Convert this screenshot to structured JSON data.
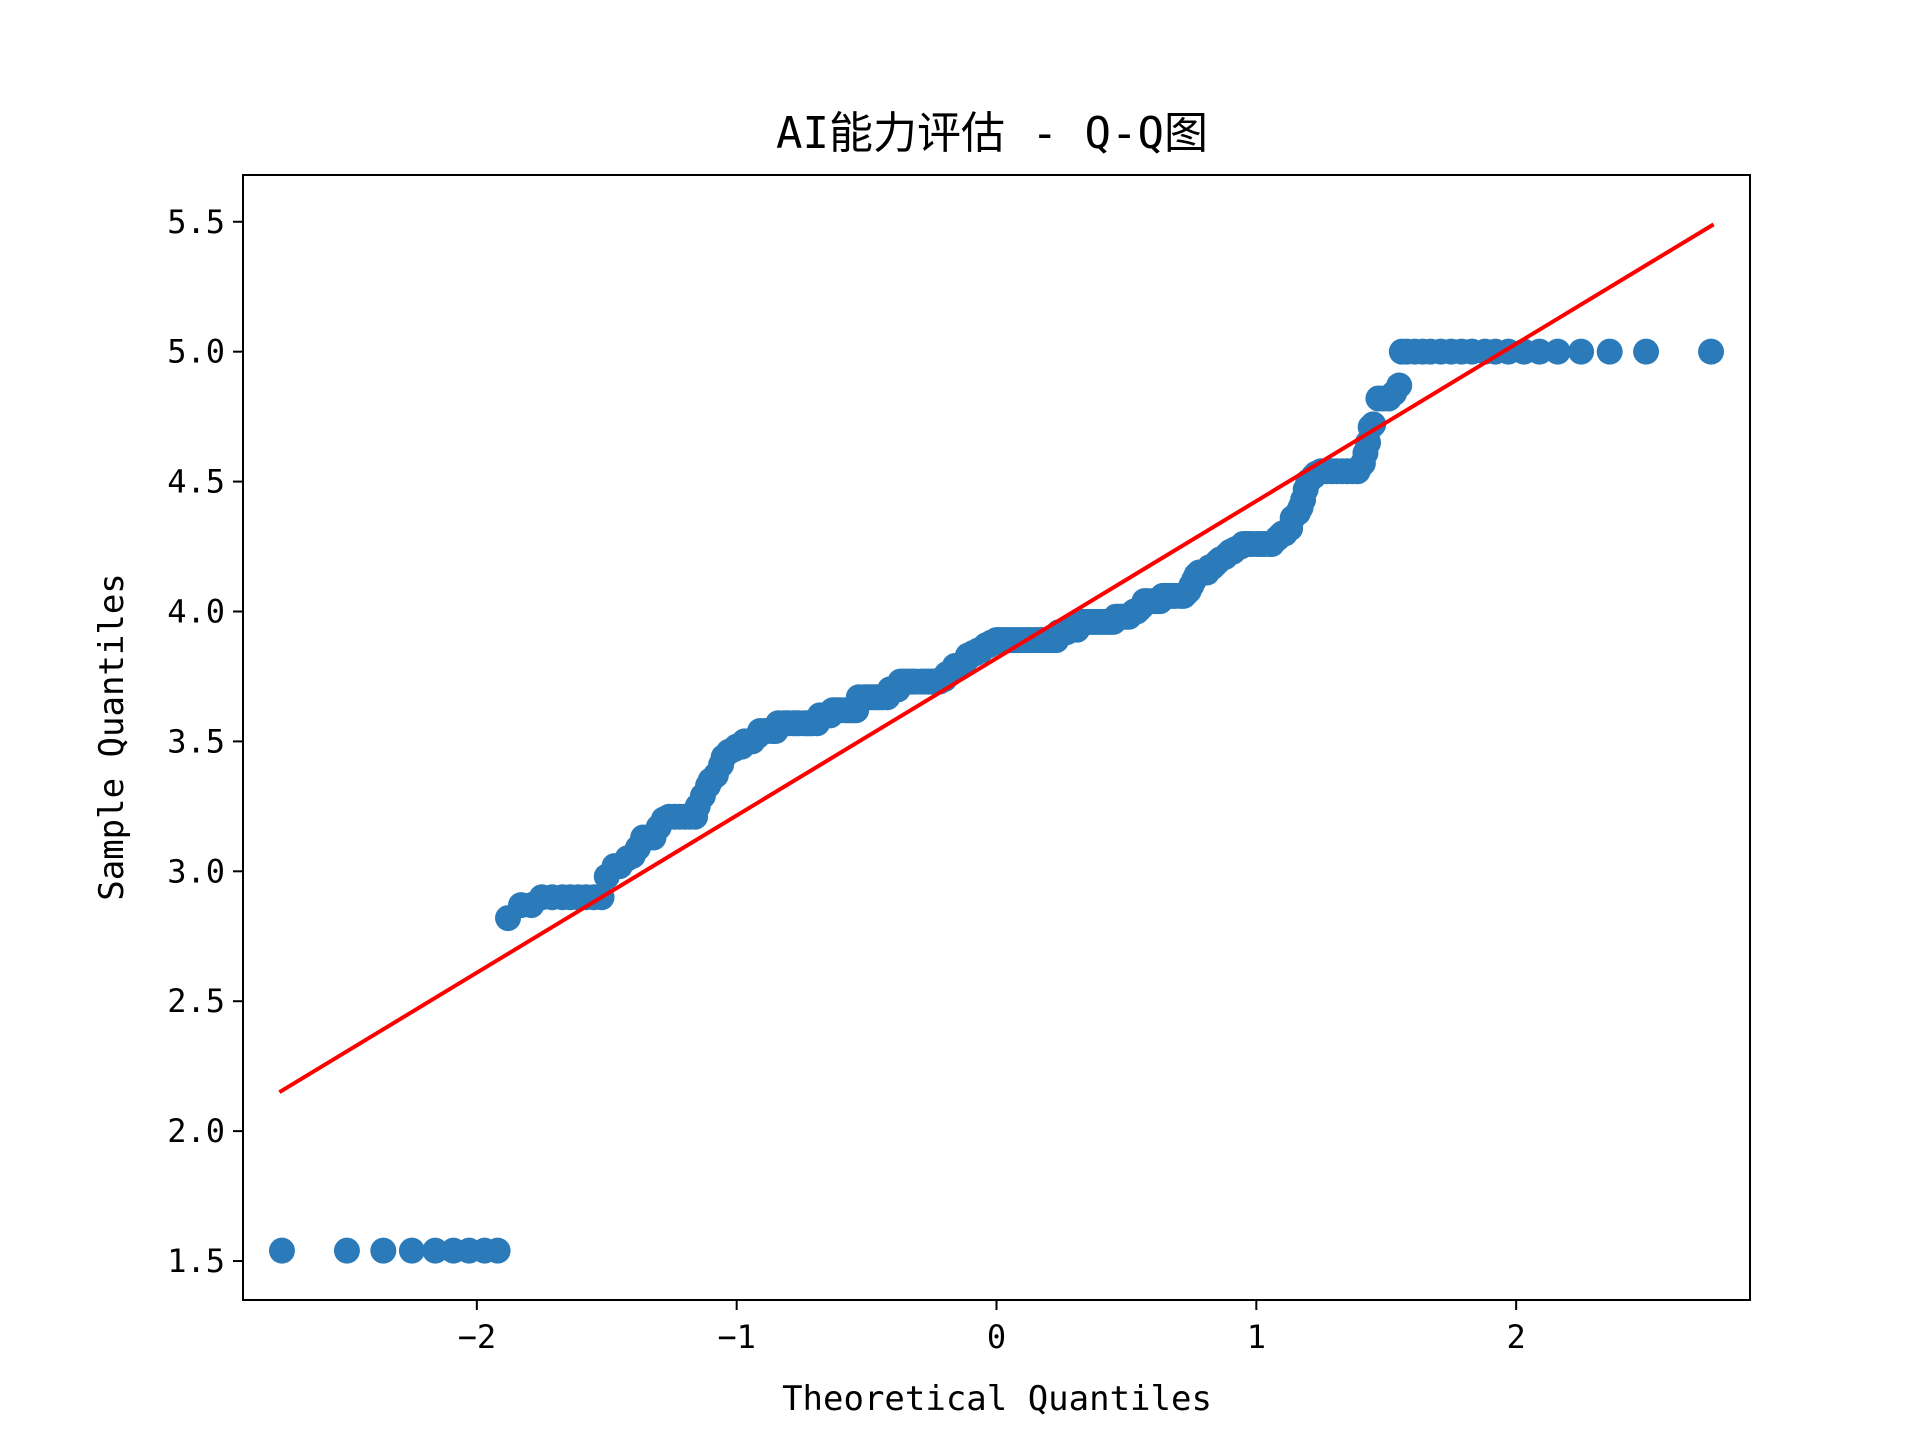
{
  "chart_data": {
    "type": "scatter",
    "title": "AI能力评估 - Q-Q图",
    "xlabel": "Theoretical Quantiles",
    "ylabel": "Sample Quantiles",
    "xlim": [
      -2.9,
      2.9
    ],
    "ylim": [
      1.35,
      5.68
    ],
    "xticks": [
      -2,
      -1,
      0,
      1,
      2
    ],
    "xtick_labels": [
      "−2",
      "−1",
      "0",
      "1",
      "2"
    ],
    "yticks": [
      1.5,
      2.0,
      2.5,
      3.0,
      3.5,
      4.0,
      4.5,
      5.0,
      5.5
    ],
    "ytick_labels": [
      "1.5",
      "2.0",
      "2.5",
      "3.0",
      "3.5",
      "4.0",
      "4.5",
      "5.0",
      "5.5"
    ],
    "grid": false,
    "legend": "none",
    "point_color": "#2b7bba",
    "line_color": "#ff0000",
    "series": [
      {
        "kind": "scatter",
        "points": [
          [
            -2.75,
            1.54
          ],
          [
            -2.5,
            1.54
          ],
          [
            -2.36,
            1.54
          ],
          [
            -2.25,
            1.54
          ],
          [
            -2.16,
            1.54
          ],
          [
            -2.09,
            1.54
          ],
          [
            -2.03,
            1.54
          ],
          [
            -1.97,
            1.54
          ],
          [
            -1.92,
            1.54
          ],
          [
            -1.88,
            2.82
          ],
          [
            -1.83,
            2.87
          ],
          [
            -1.79,
            2.87
          ],
          [
            -1.75,
            2.9
          ],
          [
            -1.71,
            2.9
          ],
          [
            -1.67,
            2.9
          ],
          [
            -1.64,
            2.9
          ],
          [
            -1.61,
            2.9
          ],
          [
            -1.58,
            2.9
          ],
          [
            -1.55,
            2.9
          ],
          [
            -1.52,
            2.9
          ],
          [
            -1.5,
            2.98
          ],
          [
            -1.47,
            3.02
          ],
          [
            -1.45,
            3.02
          ],
          [
            -1.42,
            3.05
          ],
          [
            -1.4,
            3.06
          ],
          [
            -1.38,
            3.09
          ],
          [
            -1.36,
            3.13
          ],
          [
            -1.34,
            3.13
          ],
          [
            -1.32,
            3.13
          ],
          [
            -1.3,
            3.17
          ],
          [
            -1.28,
            3.2
          ],
          [
            -1.26,
            3.21
          ],
          [
            -1.24,
            3.21
          ],
          [
            -1.22,
            3.21
          ],
          [
            -1.2,
            3.21
          ],
          [
            -1.18,
            3.21
          ],
          [
            -1.16,
            3.21
          ],
          [
            -1.15,
            3.25
          ],
          [
            -1.13,
            3.29
          ],
          [
            -1.11,
            3.33
          ],
          [
            -1.1,
            3.35
          ],
          [
            -1.08,
            3.37
          ],
          [
            -1.06,
            3.41
          ],
          [
            -1.05,
            3.44
          ],
          [
            -1.03,
            3.46
          ],
          [
            -1.01,
            3.47
          ],
          [
            -1.0,
            3.48
          ],
          [
            -0.98,
            3.48
          ],
          [
            -0.97,
            3.5
          ],
          [
            -0.95,
            3.5
          ],
          [
            -0.94,
            3.5
          ],
          [
            -0.92,
            3.52
          ],
          [
            -0.91,
            3.54
          ],
          [
            -0.89,
            3.54
          ],
          [
            -0.88,
            3.54
          ],
          [
            -0.86,
            3.54
          ],
          [
            -0.85,
            3.54
          ],
          [
            -0.84,
            3.57
          ],
          [
            -0.82,
            3.57
          ],
          [
            -0.81,
            3.57
          ],
          [
            -0.8,
            3.57
          ],
          [
            -0.78,
            3.57
          ],
          [
            -0.77,
            3.57
          ],
          [
            -0.76,
            3.57
          ],
          [
            -0.74,
            3.57
          ],
          [
            -0.73,
            3.57
          ],
          [
            -0.72,
            3.57
          ],
          [
            -0.71,
            3.57
          ],
          [
            -0.69,
            3.57
          ],
          [
            -0.68,
            3.6
          ],
          [
            -0.67,
            3.6
          ],
          [
            -0.66,
            3.6
          ],
          [
            -0.64,
            3.6
          ],
          [
            -0.63,
            3.62
          ],
          [
            -0.62,
            3.62
          ],
          [
            -0.61,
            3.62
          ],
          [
            -0.6,
            3.62
          ],
          [
            -0.58,
            3.62
          ],
          [
            -0.57,
            3.62
          ],
          [
            -0.56,
            3.62
          ],
          [
            -0.55,
            3.62
          ],
          [
            -0.54,
            3.62
          ],
          [
            -0.53,
            3.67
          ],
          [
            -0.51,
            3.67
          ],
          [
            -0.5,
            3.67
          ],
          [
            -0.49,
            3.67
          ],
          [
            -0.48,
            3.67
          ],
          [
            -0.47,
            3.67
          ],
          [
            -0.46,
            3.67
          ],
          [
            -0.45,
            3.67
          ],
          [
            -0.44,
            3.67
          ],
          [
            -0.42,
            3.67
          ],
          [
            -0.41,
            3.7
          ],
          [
            -0.4,
            3.7
          ],
          [
            -0.39,
            3.7
          ],
          [
            -0.38,
            3.7
          ],
          [
            -0.37,
            3.73
          ],
          [
            -0.36,
            3.73
          ],
          [
            -0.35,
            3.73
          ],
          [
            -0.34,
            3.73
          ],
          [
            -0.33,
            3.73
          ],
          [
            -0.32,
            3.73
          ],
          [
            -0.31,
            3.73
          ],
          [
            -0.29,
            3.73
          ],
          [
            -0.28,
            3.73
          ],
          [
            -0.27,
            3.73
          ],
          [
            -0.26,
            3.73
          ],
          [
            -0.25,
            3.73
          ],
          [
            -0.24,
            3.73
          ],
          [
            -0.23,
            3.73
          ],
          [
            -0.22,
            3.73
          ],
          [
            -0.21,
            3.74
          ],
          [
            -0.2,
            3.74
          ],
          [
            -0.19,
            3.76
          ],
          [
            -0.18,
            3.76
          ],
          [
            -0.17,
            3.77
          ],
          [
            -0.16,
            3.79
          ],
          [
            -0.15,
            3.79
          ],
          [
            -0.14,
            3.79
          ],
          [
            -0.13,
            3.8
          ],
          [
            -0.12,
            3.81
          ],
          [
            -0.11,
            3.83
          ],
          [
            -0.1,
            3.83
          ],
          [
            -0.09,
            3.84
          ],
          [
            -0.08,
            3.84
          ],
          [
            -0.07,
            3.85
          ],
          [
            -0.06,
            3.85
          ],
          [
            -0.05,
            3.86
          ],
          [
            -0.04,
            3.87
          ],
          [
            -0.03,
            3.87
          ],
          [
            -0.02,
            3.88
          ],
          [
            -0.01,
            3.88
          ],
          [
            0.0,
            3.89
          ],
          [
            0.01,
            3.89
          ],
          [
            0.02,
            3.89
          ],
          [
            0.03,
            3.89
          ],
          [
            0.04,
            3.89
          ],
          [
            0.05,
            3.89
          ],
          [
            0.06,
            3.89
          ],
          [
            0.07,
            3.89
          ],
          [
            0.08,
            3.89
          ],
          [
            0.09,
            3.89
          ],
          [
            0.1,
            3.89
          ],
          [
            0.11,
            3.89
          ],
          [
            0.12,
            3.89
          ],
          [
            0.13,
            3.89
          ],
          [
            0.14,
            3.89
          ],
          [
            0.15,
            3.89
          ],
          [
            0.16,
            3.89
          ],
          [
            0.17,
            3.89
          ],
          [
            0.18,
            3.89
          ],
          [
            0.19,
            3.89
          ],
          [
            0.2,
            3.89
          ],
          [
            0.21,
            3.89
          ],
          [
            0.22,
            3.89
          ],
          [
            0.23,
            3.89
          ],
          [
            0.24,
            3.92
          ],
          [
            0.25,
            3.92
          ],
          [
            0.26,
            3.92
          ],
          [
            0.27,
            3.92
          ],
          [
            0.28,
            3.93
          ],
          [
            0.29,
            3.93
          ],
          [
            0.3,
            3.93
          ],
          [
            0.31,
            3.93
          ],
          [
            0.32,
            3.96
          ],
          [
            0.33,
            3.96
          ],
          [
            0.34,
            3.96
          ],
          [
            0.35,
            3.96
          ],
          [
            0.36,
            3.96
          ],
          [
            0.37,
            3.96
          ],
          [
            0.38,
            3.96
          ],
          [
            0.39,
            3.96
          ],
          [
            0.4,
            3.96
          ],
          [
            0.41,
            3.96
          ],
          [
            0.42,
            3.96
          ],
          [
            0.43,
            3.96
          ],
          [
            0.44,
            3.96
          ],
          [
            0.45,
            3.96
          ],
          [
            0.46,
            3.98
          ],
          [
            0.47,
            3.98
          ],
          [
            0.48,
            3.98
          ],
          [
            0.49,
            3.98
          ],
          [
            0.5,
            3.98
          ],
          [
            0.51,
            3.98
          ],
          [
            0.52,
            3.99
          ],
          [
            0.53,
            4.0
          ],
          [
            0.54,
            4.0
          ],
          [
            0.55,
            4.01
          ],
          [
            0.56,
            4.02
          ],
          [
            0.57,
            4.04
          ],
          [
            0.58,
            4.04
          ],
          [
            0.6,
            4.04
          ],
          [
            0.61,
            4.04
          ],
          [
            0.62,
            4.04
          ],
          [
            0.63,
            4.04
          ],
          [
            0.64,
            4.06
          ],
          [
            0.65,
            4.06
          ],
          [
            0.66,
            4.06
          ],
          [
            0.67,
            4.06
          ],
          [
            0.68,
            4.06
          ],
          [
            0.69,
            4.06
          ],
          [
            0.71,
            4.06
          ],
          [
            0.72,
            4.06
          ],
          [
            0.73,
            4.07
          ],
          [
            0.74,
            4.08
          ],
          [
            0.75,
            4.1
          ],
          [
            0.76,
            4.12
          ],
          [
            0.77,
            4.14
          ],
          [
            0.78,
            4.15
          ],
          [
            0.8,
            4.15
          ],
          [
            0.81,
            4.15
          ],
          [
            0.82,
            4.17
          ],
          [
            0.83,
            4.17
          ],
          [
            0.84,
            4.18
          ],
          [
            0.85,
            4.19
          ],
          [
            0.86,
            4.2
          ],
          [
            0.88,
            4.21
          ],
          [
            0.89,
            4.22
          ],
          [
            0.9,
            4.23
          ],
          [
            0.91,
            4.23
          ],
          [
            0.92,
            4.24
          ],
          [
            0.94,
            4.25
          ],
          [
            0.95,
            4.26
          ],
          [
            0.96,
            4.26
          ],
          [
            0.97,
            4.26
          ],
          [
            0.98,
            4.26
          ],
          [
            1.0,
            4.26
          ],
          [
            1.01,
            4.26
          ],
          [
            1.02,
            4.26
          ],
          [
            1.03,
            4.26
          ],
          [
            1.05,
            4.26
          ],
          [
            1.06,
            4.26
          ],
          [
            1.08,
            4.28
          ],
          [
            1.09,
            4.29
          ],
          [
            1.1,
            4.3
          ],
          [
            1.11,
            4.3
          ],
          [
            1.13,
            4.32
          ],
          [
            1.14,
            4.36
          ],
          [
            1.16,
            4.38
          ],
          [
            1.17,
            4.4
          ],
          [
            1.18,
            4.43
          ],
          [
            1.19,
            4.47
          ],
          [
            1.2,
            4.5
          ],
          [
            1.22,
            4.52
          ],
          [
            1.23,
            4.53
          ],
          [
            1.25,
            4.54
          ],
          [
            1.27,
            4.54
          ],
          [
            1.29,
            4.54
          ],
          [
            1.31,
            4.54
          ],
          [
            1.33,
            4.54
          ],
          [
            1.35,
            4.54
          ],
          [
            1.37,
            4.54
          ],
          [
            1.39,
            4.54
          ],
          [
            1.41,
            4.57
          ],
          [
            1.42,
            4.61
          ],
          [
            1.43,
            4.65
          ],
          [
            1.44,
            4.71
          ],
          [
            1.45,
            4.72
          ],
          [
            1.47,
            4.82
          ],
          [
            1.49,
            4.82
          ],
          [
            1.51,
            4.82
          ],
          [
            1.53,
            4.84
          ],
          [
            1.55,
            4.87
          ],
          [
            1.56,
            5.0
          ],
          [
            1.58,
            5.0
          ],
          [
            1.61,
            5.0
          ],
          [
            1.64,
            5.0
          ],
          [
            1.67,
            5.0
          ],
          [
            1.71,
            5.0
          ],
          [
            1.75,
            5.0
          ],
          [
            1.79,
            5.0
          ],
          [
            1.83,
            5.0
          ],
          [
            1.88,
            5.0
          ],
          [
            1.92,
            5.0
          ],
          [
            1.97,
            5.0
          ],
          [
            2.03,
            5.0
          ],
          [
            2.09,
            5.0
          ],
          [
            2.16,
            5.0
          ],
          [
            2.25,
            5.0
          ],
          [
            2.36,
            5.0
          ],
          [
            2.5,
            5.0
          ],
          [
            2.75,
            5.0
          ]
        ]
      },
      {
        "kind": "line",
        "points": [
          [
            -2.76,
            2.15
          ],
          [
            2.76,
            5.49
          ]
        ]
      }
    ]
  }
}
